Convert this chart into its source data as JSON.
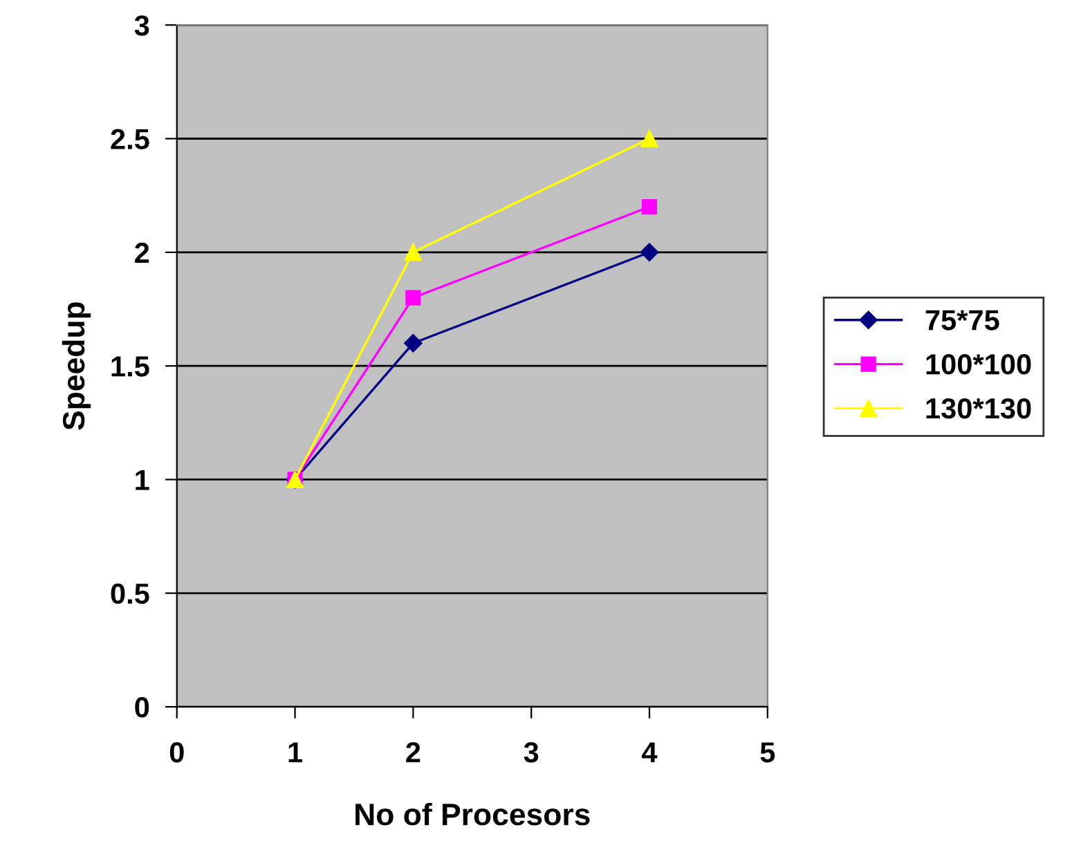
{
  "chart_data": {
    "type": "line",
    "xlabel": "No of Procesors",
    "ylabel": "Speedup",
    "xlim": [
      0,
      5
    ],
    "xticks": [
      0,
      1,
      2,
      3,
      4,
      5
    ],
    "ylim": [
      0,
      3
    ],
    "yticks": [
      0,
      0.5,
      1,
      1.5,
      2,
      2.5,
      3
    ],
    "grid": "y",
    "legend": "right",
    "line_style": "solid",
    "series": [
      {
        "name": "75*75",
        "color": "#000080",
        "marker": "diamond",
        "x": [
          1,
          2,
          4
        ],
        "values": [
          1,
          1.6,
          2.0
        ]
      },
      {
        "name": "100*100",
        "color": "#ff00ff",
        "marker": "square",
        "x": [
          1,
          2,
          4
        ],
        "values": [
          1,
          1.8,
          2.2
        ]
      },
      {
        "name": "130*130",
        "color": "#ffff00",
        "marker": "triangle",
        "x": [
          1,
          2,
          4
        ],
        "values": [
          1,
          2.0,
          2.5
        ]
      }
    ]
  }
}
